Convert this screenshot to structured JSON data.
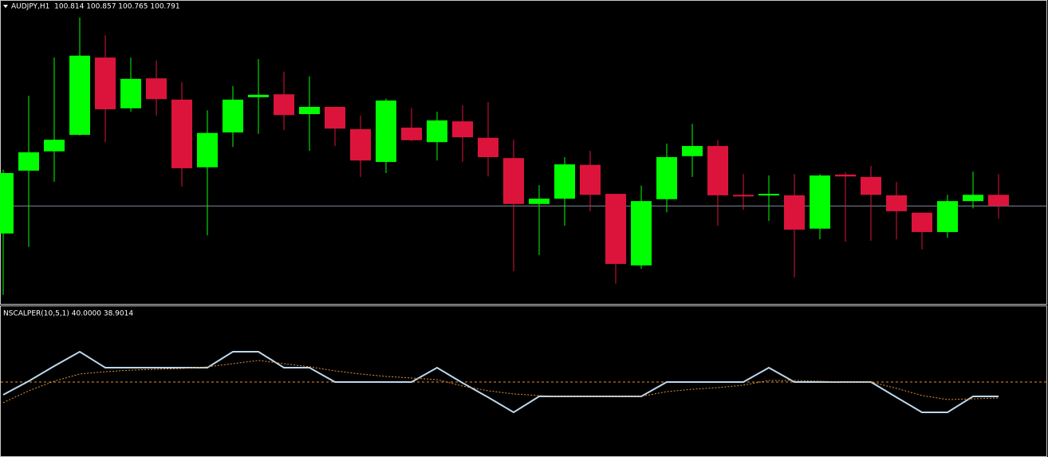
{
  "chart_data": [
    {
      "type": "candlestick",
      "title": "AUDJPY,H1  100.814 100.857 100.765 100.791",
      "open": [
        100.734,
        100.864,
        100.904,
        100.938,
        101.098,
        100.993,
        101.055,
        101.011,
        100.871,
        100.943,
        101.016,
        101.022,
        100.981,
        100.996,
        100.95,
        100.882,
        100.953,
        100.923,
        100.966,
        100.932,
        100.89,
        100.795,
        100.806,
        100.876,
        100.816,
        100.668,
        100.805,
        100.894,
        100.915,
        100.814,
        100.813,
        100.813,
        100.744,
        100.856,
        100.851,
        100.813,
        100.777,
        100.737,
        100.801,
        100.814
      ],
      "high": [
        100.866,
        101.019,
        101.098,
        101.181,
        101.144,
        101.098,
        101.092,
        101.047,
        100.989,
        101.039,
        101.095,
        101.069,
        101.059,
        100.996,
        100.978,
        101.013,
        100.994,
        100.986,
        100.999,
        101.006,
        100.928,
        100.834,
        100.892,
        100.905,
        100.816,
        100.833,
        100.92,
        100.961,
        100.927,
        100.857,
        100.854,
        100.857,
        100.857,
        100.861,
        100.874,
        100.841,
        100.777,
        100.814,
        100.862,
        100.857
      ],
      "low": [
        100.607,
        100.706,
        100.841,
        100.937,
        100.923,
        100.986,
        100.978,
        100.831,
        100.73,
        100.913,
        100.94,
        100.948,
        100.905,
        100.915,
        100.851,
        100.859,
        100.925,
        100.885,
        100.882,
        100.852,
        100.656,
        100.689,
        100.75,
        100.78,
        100.63,
        100.661,
        100.778,
        100.851,
        100.75,
        100.783,
        100.76,
        100.643,
        100.722,
        100.717,
        100.719,
        100.722,
        100.701,
        100.725,
        100.786,
        100.765
      ],
      "close": [
        100.859,
        100.902,
        100.928,
        101.102,
        100.991,
        101.054,
        101.012,
        100.869,
        100.942,
        101.011,
        101.021,
        100.979,
        100.996,
        100.951,
        100.885,
        101.009,
        100.927,
        100.968,
        100.933,
        100.892,
        100.795,
        100.806,
        100.877,
        100.814,
        100.671,
        100.801,
        100.892,
        100.915,
        100.813,
        100.811,
        100.816,
        100.742,
        100.854,
        100.852,
        100.814,
        100.78,
        100.737,
        100.801,
        100.814,
        100.791
      ],
      "up_color": "#00ff00",
      "down_color": "#dc143c",
      "bid_line_color": "#7f8c99",
      "ylim": [
        100.59,
        101.194
      ]
    },
    {
      "type": "line",
      "title": "NSCALPER(10,5,1) 40.0000 38.9014",
      "ylim": [
        0,
        90
      ],
      "levels": [
        50
      ],
      "level_color": "#e0913a",
      "series": [
        {
          "color": "#bcd8ec",
          "style": "solid",
          "values": [
            41.1,
            50.6,
            61.1,
            71.1,
            60,
            60,
            60,
            60,
            60,
            71.1,
            71.1,
            60,
            60,
            50,
            50,
            50,
            50,
            60,
            49.4,
            39.4,
            28.9,
            40,
            40,
            40,
            40,
            40,
            50,
            50,
            50,
            50,
            60,
            50,
            50,
            50,
            50,
            39.4,
            28.9,
            28.9,
            40,
            40
          ]
        },
        {
          "color": "#e0913a",
          "style": "dotted",
          "values": [
            35.6,
            43.9,
            50.6,
            55.6,
            57.2,
            58.3,
            58.9,
            59.4,
            60.6,
            62.8,
            65,
            62.8,
            60.6,
            57.8,
            55.6,
            53.9,
            52.8,
            51.7,
            47.2,
            43.9,
            41.7,
            40.6,
            40,
            40,
            40,
            40,
            43.3,
            45,
            46.1,
            47.8,
            51.1,
            51.1,
            50.6,
            50,
            50,
            45.6,
            40.6,
            37.8,
            38.3,
            38.9014
          ]
        }
      ]
    }
  ]
}
